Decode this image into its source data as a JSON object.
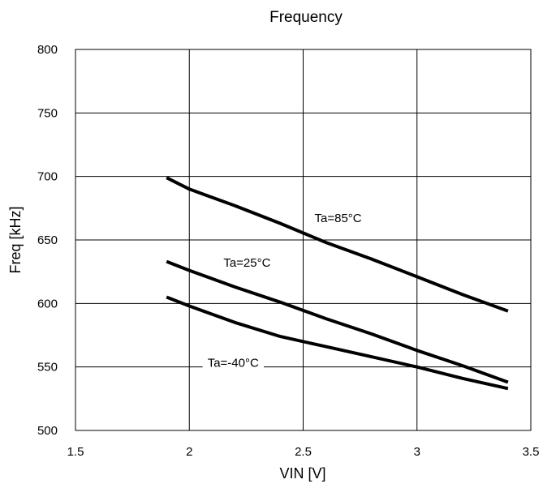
{
  "chart_data": {
    "type": "line",
    "title": "Frequency",
    "xlabel": "VIN [V]",
    "ylabel": "Freq [kHz]",
    "xlim": [
      1.5,
      3.5
    ],
    "ylim": [
      500,
      800
    ],
    "xticks": [
      "1.5",
      "2",
      "2.5",
      "3",
      "3.5"
    ],
    "yticks": [
      "500",
      "550",
      "600",
      "650",
      "700",
      "750",
      "800"
    ],
    "grid": true,
    "line_color": "#000000",
    "series": [
      {
        "name": "Ta=85°C",
        "x": [
          1.9,
          2.0,
          2.2,
          2.4,
          2.6,
          2.8,
          3.0,
          3.2,
          3.4
        ],
        "y": [
          699,
          690,
          677,
          663,
          648,
          635,
          621,
          607,
          594
        ]
      },
      {
        "name": "Ta=25°C",
        "x": [
          1.9,
          2.0,
          2.2,
          2.4,
          2.6,
          2.8,
          3.0,
          3.2,
          3.4
        ],
        "y": [
          633,
          626,
          613,
          601,
          588,
          576,
          563,
          551,
          538
        ]
      },
      {
        "name": "Ta=-40°C",
        "x": [
          1.9,
          2.0,
          2.2,
          2.4,
          2.6,
          2.8,
          3.0,
          3.2,
          3.4
        ],
        "y": [
          605,
          598,
          585,
          574,
          566,
          558,
          550,
          541,
          533
        ]
      }
    ],
    "annotations": [
      {
        "text": "Ta=85°C",
        "x": 2.55,
        "y": 664
      },
      {
        "text": "Ta=25°C",
        "x": 2.15,
        "y": 629
      },
      {
        "text": "Ta=-40°C",
        "x": 2.08,
        "y": 550
      }
    ]
  }
}
